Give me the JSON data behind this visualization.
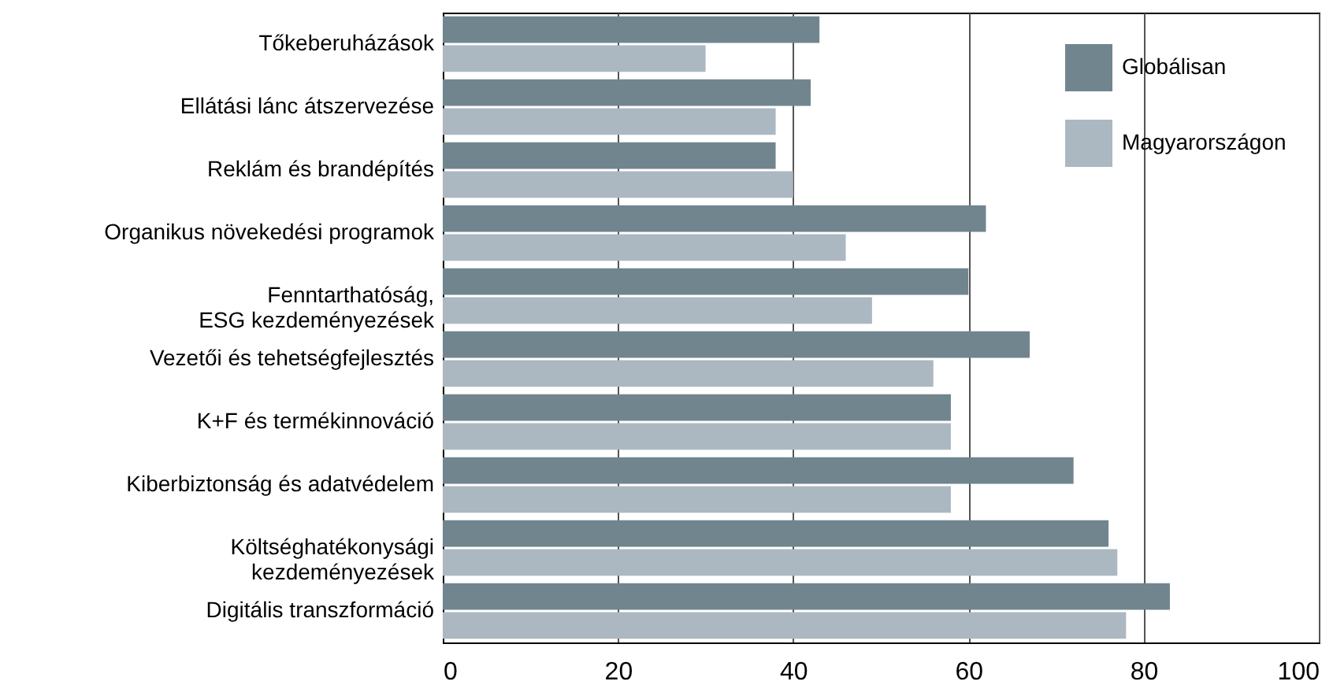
{
  "chart_data": {
    "type": "bar",
    "orientation": "horizontal",
    "categories": [
      "Tőkeberuházások",
      "Ellátási lánc átszervezése",
      "Reklám és brandépítés",
      "Organikus növekedési programok",
      "Fenntarthatóság,\nESG kezdeményezések",
      "Vezetői és tehetségfejlesztés",
      "K+F és termékinnováció",
      "Kiberbiztonság és adatvédelem",
      "Költséghatékonysági\nkezdeményezések",
      "Digitális transzformáció"
    ],
    "series": [
      {
        "name": "Globálisan",
        "color": "#71858f",
        "values": [
          43,
          42,
          38,
          62,
          60,
          67,
          58,
          72,
          76,
          83
        ]
      },
      {
        "name": "Magyarországon",
        "color": "#acb8c1",
        "values": [
          30,
          38,
          40,
          46,
          49,
          56,
          58,
          58,
          77,
          78
        ]
      }
    ],
    "xlim": [
      0,
      100
    ],
    "xticks": [
      0,
      20,
      40,
      60,
      80,
      100
    ],
    "grid": "x",
    "legend": "top right"
  }
}
